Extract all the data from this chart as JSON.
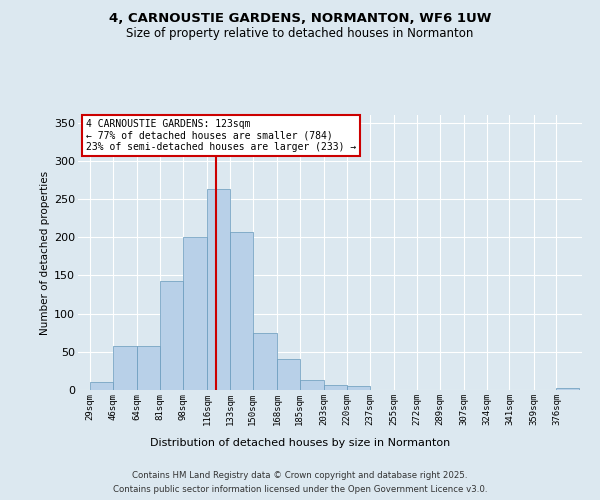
{
  "title_line1": "4, CARNOUSTIE GARDENS, NORMANTON, WF6 1UW",
  "title_line2": "Size of property relative to detached houses in Normanton",
  "xlabel": "Distribution of detached houses by size in Normanton",
  "ylabel": "Number of detached properties",
  "bar_color": "#b8d0e8",
  "bar_edge_color": "#6699bb",
  "background_color": "#dce8f0",
  "bin_labels": [
    "29sqm",
    "46sqm",
    "64sqm",
    "81sqm",
    "98sqm",
    "116sqm",
    "133sqm",
    "150sqm",
    "168sqm",
    "185sqm",
    "203sqm",
    "220sqm",
    "237sqm",
    "255sqm",
    "272sqm",
    "289sqm",
    "307sqm",
    "324sqm",
    "341sqm",
    "359sqm",
    "376sqm"
  ],
  "bin_left_edges": [
    29,
    46,
    64,
    81,
    98,
    116,
    133,
    150,
    168,
    185,
    203,
    220,
    237,
    255,
    272,
    289,
    307,
    324,
    341,
    359,
    376
  ],
  "heights": [
    10,
    57,
    57,
    143,
    200,
    263,
    207,
    74,
    40,
    13,
    6,
    5,
    0,
    0,
    0,
    0,
    0,
    0,
    0,
    0,
    2
  ],
  "vline_x": 123,
  "vline_color": "#cc0000",
  "annotation_title": "4 CARNOUSTIE GARDENS: 123sqm",
  "annotation_line1": "← 77% of detached houses are smaller (784)",
  "annotation_line2": "23% of semi-detached houses are larger (233) →",
  "ylim": [
    0,
    360
  ],
  "yticks": [
    0,
    50,
    100,
    150,
    200,
    250,
    300,
    350
  ],
  "footer_line1": "Contains HM Land Registry data © Crown copyright and database right 2025.",
  "footer_line2": "Contains public sector information licensed under the Open Government Licence v3.0."
}
